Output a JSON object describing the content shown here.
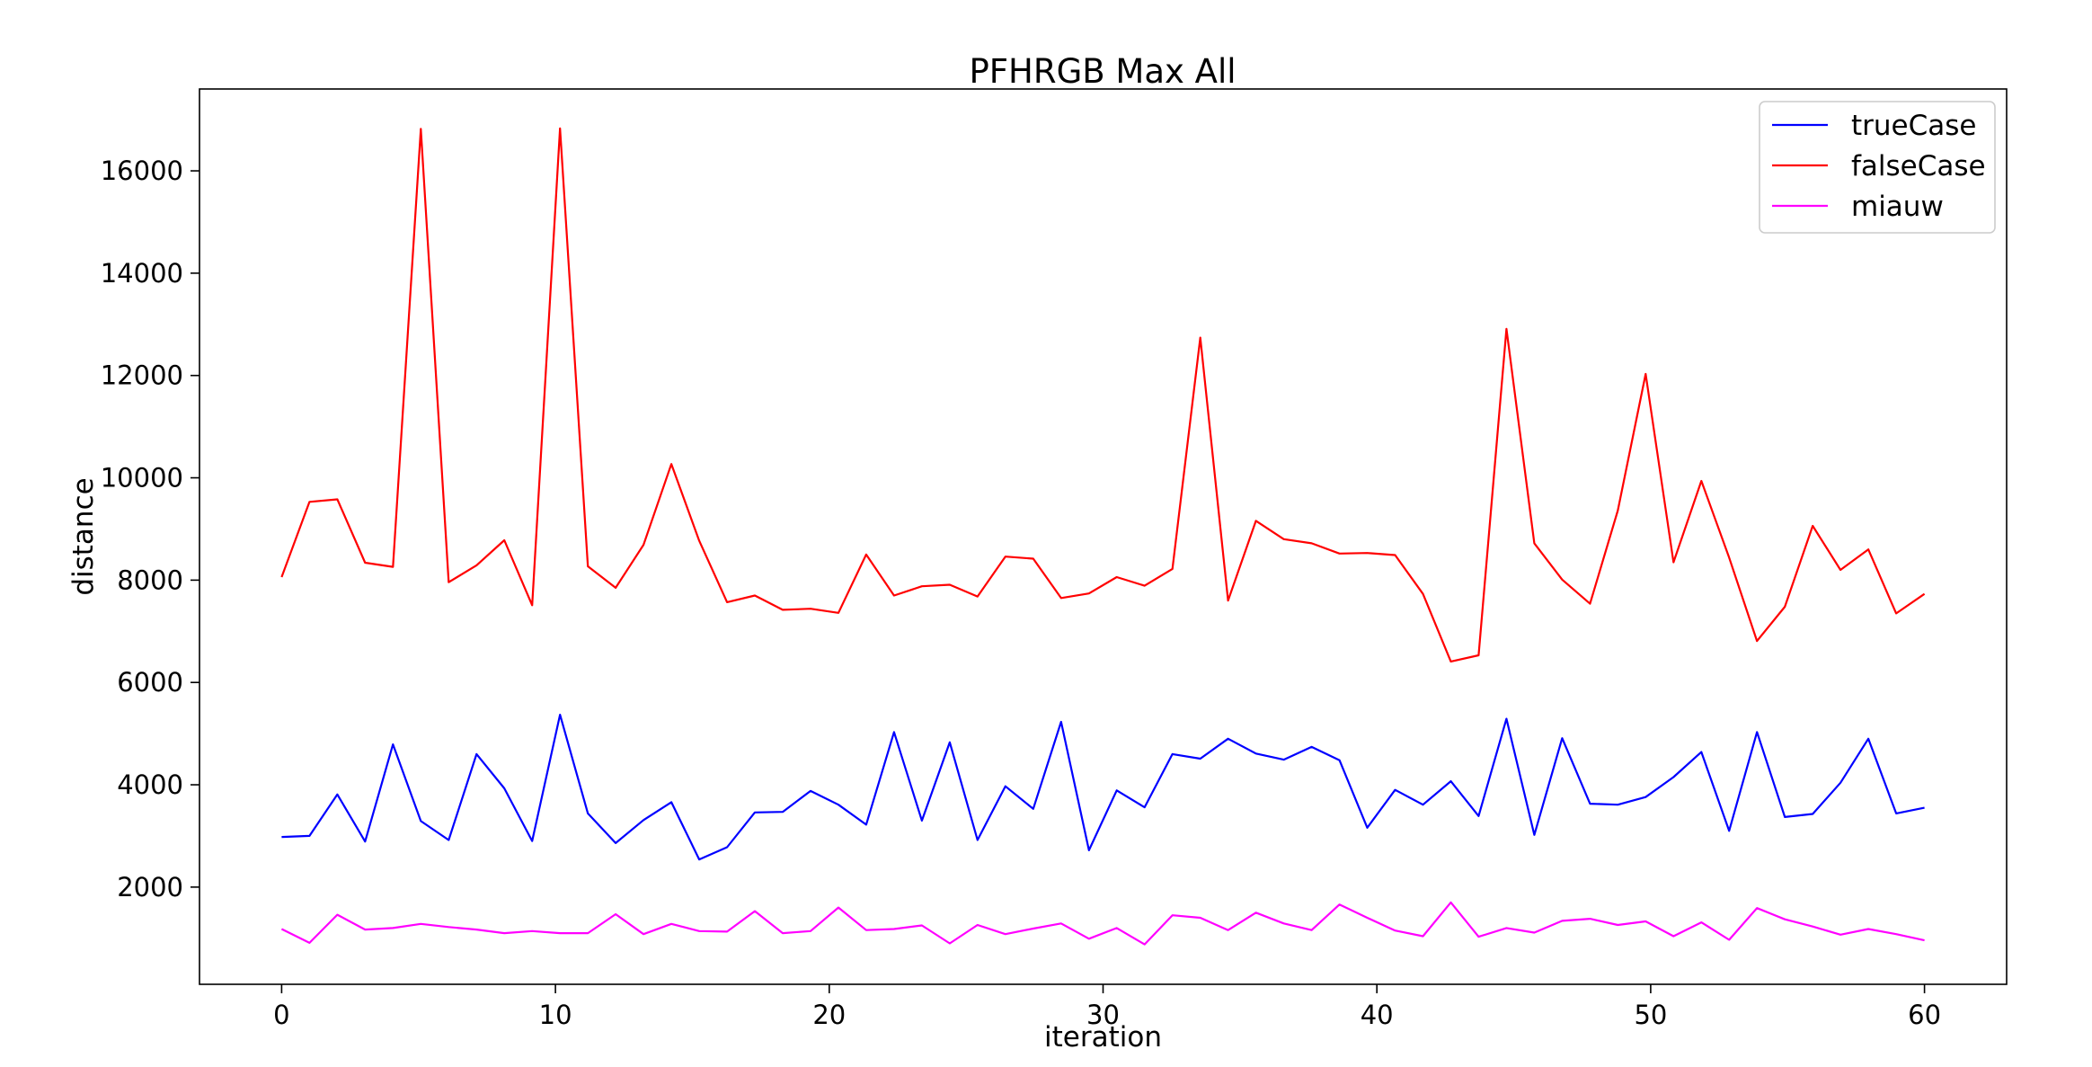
{
  "chart_data": {
    "type": "line",
    "title": "PFHRGB Max All",
    "xlabel": "iteration",
    "ylabel": "distance",
    "xlim": [
      -3,
      63
    ],
    "ylim": [
      100,
      17600
    ],
    "xticks": [
      0,
      10,
      20,
      30,
      40,
      50,
      60
    ],
    "yticks": [
      2000,
      4000,
      6000,
      8000,
      10000,
      12000,
      14000,
      16000
    ],
    "grid": false,
    "legend_position": "top-right",
    "series": [
      {
        "name": "trueCase",
        "color": "#0000ff",
        "x": [
          0,
          1.0167,
          2.0333,
          3.05,
          4.0667,
          5.0833,
          6.1,
          7.1167,
          8.1333,
          9.15,
          10.1667,
          11.1833,
          12.2,
          13.2167,
          14.2333,
          15.25,
          16.2667,
          17.2833,
          18.3,
          19.3167,
          20.3333,
          21.35,
          22.3667,
          23.3833,
          24.4,
          25.4167,
          26.4333,
          27.45,
          28.4667,
          29.4833,
          30.5,
          31.5167,
          32.5333,
          33.55,
          34.5667,
          35.5833,
          36.6,
          37.6167,
          38.6333,
          39.65,
          40.6667,
          41.6833,
          42.7,
          43.7167,
          44.7333,
          45.75,
          46.7667,
          47.7833,
          48.8,
          49.8167,
          50.8333,
          51.85,
          52.8667,
          53.8833,
          54.9,
          55.9167,
          56.9333,
          57.95,
          58.9667,
          60
        ],
        "values": [
          2980,
          3000,
          3810,
          2890,
          4790,
          3290,
          2920,
          4600,
          3930,
          2900,
          5370,
          3440,
          2860,
          3310,
          3660,
          2540,
          2780,
          3460,
          3470,
          3880,
          3610,
          3220,
          5030,
          3300,
          4830,
          2920,
          3970,
          3530,
          5230,
          2720,
          3890,
          3560,
          4600,
          4510,
          4900,
          4610,
          4490,
          4740,
          4480,
          3160,
          3900,
          3610,
          4070,
          3390,
          5290,
          3020,
          4910,
          3630,
          3610,
          3760,
          4150,
          4640,
          3100,
          5030,
          3370,
          3430,
          4040,
          4900,
          3440,
          3550
        ]
      },
      {
        "name": "falseCase",
        "color": "#ff0000",
        "x": [
          0,
          1.0167,
          2.0333,
          3.05,
          4.0667,
          5.0833,
          6.1,
          7.1167,
          8.1333,
          9.15,
          10.1667,
          11.1833,
          12.2,
          13.2167,
          14.2333,
          15.25,
          16.2667,
          17.2833,
          18.3,
          19.3167,
          20.3333,
          21.35,
          22.3667,
          23.3833,
          24.4,
          25.4167,
          26.4333,
          27.45,
          28.4667,
          29.4833,
          30.5,
          31.5167,
          32.5333,
          33.55,
          34.5667,
          35.5833,
          36.6,
          37.6167,
          38.6333,
          39.65,
          40.6667,
          41.6833,
          42.7,
          43.7167,
          44.7333,
          45.75,
          46.7667,
          47.7833,
          48.8,
          49.8167,
          50.8333,
          51.85,
          52.8667,
          53.8833,
          54.9,
          55.9167,
          56.9333,
          57.95,
          58.9667,
          60
        ],
        "values": [
          8060,
          9530,
          9580,
          8340,
          8260,
          16820,
          7960,
          8290,
          8780,
          7510,
          16830,
          8270,
          7850,
          8690,
          10270,
          8770,
          7570,
          7700,
          7420,
          7440,
          7360,
          8500,
          7700,
          7880,
          7910,
          7680,
          8460,
          8420,
          7650,
          7740,
          8060,
          7890,
          8220,
          12740,
          7600,
          9160,
          8800,
          8720,
          8520,
          8530,
          8490,
          7730,
          6410,
          6530,
          12910,
          8720,
          8010,
          7540,
          9360,
          12030,
          8350,
          9940,
          8440,
          6810,
          7480,
          9060,
          8200,
          8600,
          7350,
          7730
        ]
      },
      {
        "name": "miauw",
        "color": "#ff00ff",
        "x": [
          0,
          1.0167,
          2.0333,
          3.05,
          4.0667,
          5.0833,
          6.1,
          7.1167,
          8.1333,
          9.15,
          10.1667,
          11.1833,
          12.2,
          13.2167,
          14.2333,
          15.25,
          16.2667,
          17.2833,
          18.3,
          19.3167,
          20.3333,
          21.35,
          22.3667,
          23.3833,
          24.4,
          25.4167,
          26.4333,
          27.45,
          28.4667,
          29.4833,
          30.5,
          31.5167,
          32.5333,
          33.55,
          34.5667,
          35.5833,
          36.6,
          37.6167,
          38.6333,
          39.65,
          40.6667,
          41.6833,
          42.7,
          43.7167,
          44.7333,
          45.75,
          46.7667,
          47.7833,
          48.8,
          49.8167,
          50.8333,
          51.85,
          52.8667,
          53.8833,
          54.9,
          55.9167,
          56.9333,
          57.95,
          58.9667,
          60
        ],
        "values": [
          1180,
          910,
          1460,
          1170,
          1200,
          1280,
          1220,
          1170,
          1100,
          1140,
          1100,
          1100,
          1470,
          1080,
          1280,
          1140,
          1130,
          1530,
          1100,
          1140,
          1600,
          1160,
          1180,
          1250,
          900,
          1260,
          1080,
          1190,
          1290,
          990,
          1200,
          880,
          1450,
          1400,
          1160,
          1500,
          1290,
          1160,
          1660,
          1400,
          1150,
          1040,
          1700,
          1030,
          1200,
          1110,
          1340,
          1380,
          1260,
          1330,
          1040,
          1310,
          970,
          1590,
          1370,
          1230,
          1070,
          1180,
          1080,
          960
        ]
      }
    ]
  }
}
